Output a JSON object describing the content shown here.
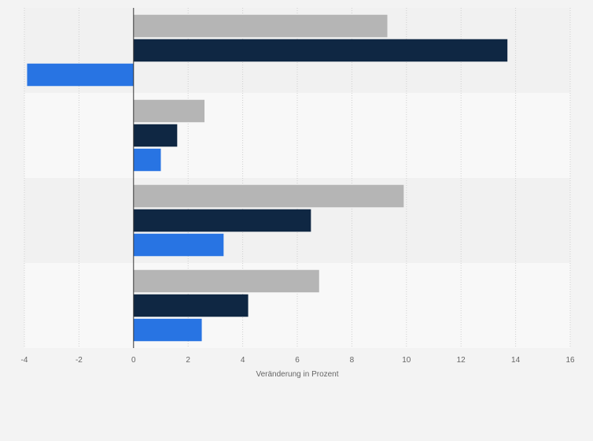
{
  "chart_data": {
    "type": "bar",
    "orientation": "horizontal",
    "categories": [
      "",
      "",
      "",
      ""
    ],
    "series": [
      {
        "values": [
          9.3,
          2.6,
          9.9,
          6.8
        ],
        "color": "#b5b5b5"
      },
      {
        "values": [
          13.7,
          1.6,
          6.5,
          4.2
        ],
        "color": "#0f2743"
      },
      {
        "values": [
          -3.9,
          1.0,
          3.3,
          2.5
        ],
        "color": "#2874e3"
      }
    ],
    "xlabel": "Veränderung in Prozent",
    "ylabel": "",
    "xlim": [
      -4,
      16
    ],
    "x_ticks": [
      "-4",
      "-2",
      "0",
      "2",
      "4",
      "6",
      "8",
      "10",
      "12",
      "14",
      "16"
    ],
    "grid": true,
    "legend": "none"
  }
}
